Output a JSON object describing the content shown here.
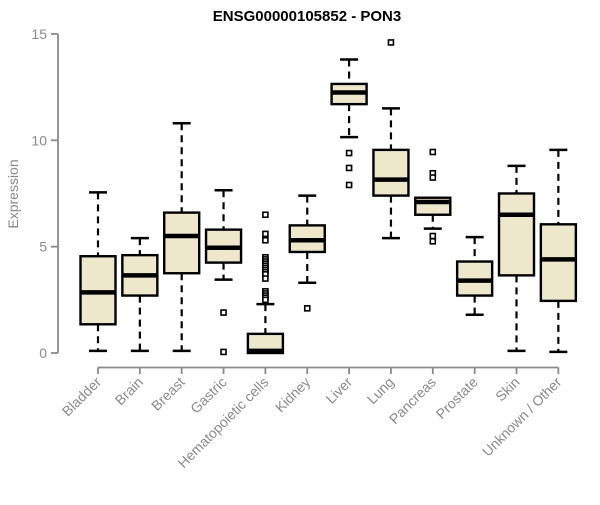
{
  "chart_data": {
    "type": "boxplot",
    "title": "ENSG00000105852 - PON3",
    "xlabel": "",
    "ylabel": "Expression",
    "ylim": [
      0,
      15
    ],
    "yticks": [
      0,
      5,
      10,
      15
    ],
    "grid": false,
    "legend": null,
    "categories": [
      "Bladder",
      "Brain",
      "Breast",
      "Gastric",
      "Hematopoietic cells",
      "Kidney",
      "Liver",
      "Lung",
      "Pancreas",
      "Prostate",
      "Skin",
      "Unknown / Other"
    ],
    "series": [
      {
        "category": "Bladder",
        "whisker_low": 0.1,
        "q1": 1.35,
        "median": 2.85,
        "q3": 4.55,
        "whisker_high": 7.55,
        "outliers": []
      },
      {
        "category": "Brain",
        "whisker_low": 0.1,
        "q1": 2.7,
        "median": 3.65,
        "q3": 4.6,
        "whisker_high": 5.4,
        "outliers": []
      },
      {
        "category": "Breast",
        "whisker_low": 0.1,
        "q1": 3.75,
        "median": 5.5,
        "q3": 6.6,
        "whisker_high": 10.8,
        "outliers": []
      },
      {
        "category": "Gastric",
        "whisker_low": 3.45,
        "q1": 4.25,
        "median": 4.95,
        "q3": 5.8,
        "whisker_high": 7.65,
        "outliers": [
          1.9,
          0.05
        ]
      },
      {
        "category": "Hematopoietic cells",
        "whisker_low": 0.0,
        "q1": 0.0,
        "median": 0.1,
        "q3": 0.9,
        "whisker_high": 2.3,
        "outliers": [
          6.5,
          5.6,
          5.3,
          4.5,
          4.4,
          4.3,
          4.2,
          4.1,
          4.0,
          3.9,
          3.8,
          3.7,
          3.5,
          2.9,
          2.8,
          2.7,
          2.6,
          2.5
        ]
      },
      {
        "category": "Kidney",
        "whisker_low": 3.3,
        "q1": 4.75,
        "median": 5.3,
        "q3": 6.0,
        "whisker_high": 7.4,
        "outliers": [
          2.1
        ]
      },
      {
        "category": "Liver",
        "whisker_low": 10.15,
        "q1": 11.7,
        "median": 12.25,
        "q3": 12.65,
        "whisker_high": 13.8,
        "outliers": [
          9.4,
          8.7,
          7.9
        ]
      },
      {
        "category": "Lung",
        "whisker_low": 5.4,
        "q1": 7.4,
        "median": 8.15,
        "q3": 9.55,
        "whisker_high": 11.5,
        "outliers": [
          14.6
        ]
      },
      {
        "category": "Pancreas",
        "whisker_low": 5.85,
        "q1": 6.5,
        "median": 7.1,
        "q3": 7.3,
        "whisker_high": 7.3,
        "outliers": [
          9.45,
          8.45,
          8.25,
          5.5,
          5.25
        ]
      },
      {
        "category": "Prostate",
        "whisker_low": 1.8,
        "q1": 2.7,
        "median": 3.4,
        "q3": 4.3,
        "whisker_high": 5.45,
        "outliers": []
      },
      {
        "category": "Skin",
        "whisker_low": 0.1,
        "q1": 3.65,
        "median": 6.5,
        "q3": 7.5,
        "whisker_high": 8.8,
        "outliers": []
      },
      {
        "category": "Unknown / Other",
        "whisker_low": 0.05,
        "q1": 2.45,
        "median": 4.4,
        "q3": 6.05,
        "whisker_high": 9.55,
        "outliers": []
      }
    ],
    "colors": {
      "box_fill": "#EDE7CC",
      "box_border": "#000000",
      "median": "#000000",
      "whisker": "#000000",
      "outlier_fill": "#FFFFFF",
      "axis": "#8A8A8A",
      "title": "#000000",
      "background": "#FFFFFF"
    }
  }
}
